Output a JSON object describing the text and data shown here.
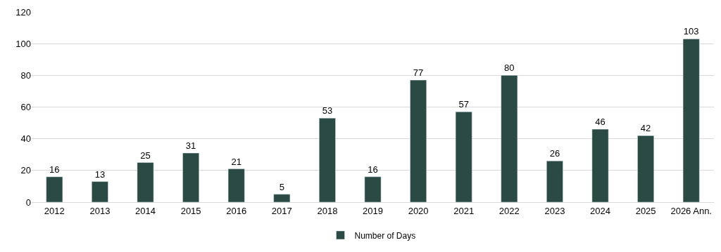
{
  "chart_data": {
    "type": "bar",
    "categories": [
      "2012",
      "2013",
      "2014",
      "2015",
      "2016",
      "2017",
      "2018",
      "2019",
      "2020",
      "2021",
      "2022",
      "2023",
      "2024",
      "2025",
      "2026 Ann."
    ],
    "series": [
      {
        "name": "Number of Days",
        "color": "#2a4a43",
        "values": [
          16,
          13,
          25,
          31,
          21,
          5,
          53,
          16,
          77,
          57,
          80,
          26,
          46,
          42,
          103
        ]
      }
    ],
    "ylim": [
      0,
      120
    ],
    "yticks": [
      0,
      20,
      40,
      60,
      80,
      100,
      120
    ],
    "grid": "y",
    "legend": "bottom",
    "data_labels": true
  }
}
